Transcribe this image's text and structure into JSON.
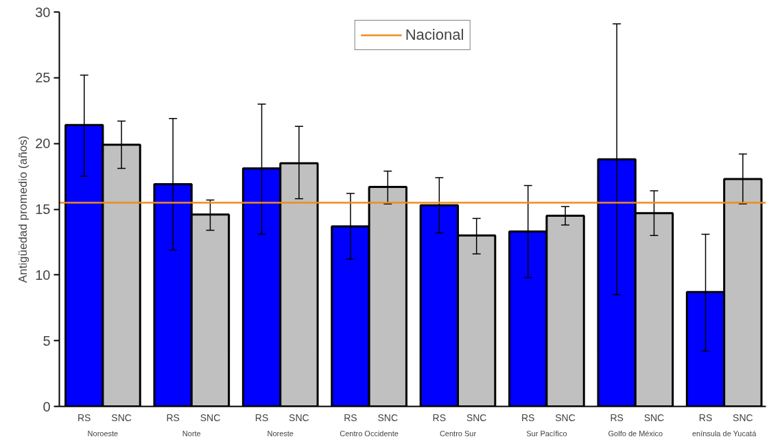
{
  "chart_data": {
    "type": "bar",
    "ylabel": "Antigüedad promedio (años)",
    "categories": [
      "Noroeste",
      "Norte",
      "Noreste",
      "Centro Occidente",
      "Centro Sur",
      "Sur Pacífico",
      "Golfo de México",
      "enínsula de Yucatá"
    ],
    "series": [
      {
        "name": "RS",
        "color": "#0000ff",
        "values": [
          21.4,
          16.9,
          18.1,
          13.7,
          15.3,
          13.3,
          18.8,
          8.7
        ],
        "errors": [
          [
            17.5,
            25.2
          ],
          [
            11.9,
            21.9
          ],
          [
            13.1,
            23.0
          ],
          [
            11.2,
            16.2
          ],
          [
            13.2,
            17.4
          ],
          [
            9.8,
            16.8
          ],
          [
            8.5,
            29.1
          ],
          [
            4.2,
            13.1
          ]
        ]
      },
      {
        "name": "SNC",
        "color": "#c0c0c0",
        "values": [
          19.9,
          14.6,
          18.5,
          16.7,
          13.0,
          14.5,
          14.7,
          17.3
        ],
        "errors": [
          [
            18.1,
            21.7
          ],
          [
            13.4,
            15.7
          ],
          [
            15.8,
            21.3
          ],
          [
            15.4,
            17.9
          ],
          [
            11.6,
            14.3
          ],
          [
            13.8,
            15.2
          ],
          [
            13.0,
            16.4
          ],
          [
            15.4,
            19.2
          ]
        ]
      }
    ],
    "ref_lines": [
      {
        "axis": "y",
        "value": 15.5,
        "label": "Nacional",
        "color": "#f08a1e"
      }
    ],
    "ylim": [
      0,
      30
    ],
    "yticks": [
      0,
      5,
      10,
      15,
      20,
      25,
      30
    ],
    "legend": "top",
    "grid": false
  }
}
